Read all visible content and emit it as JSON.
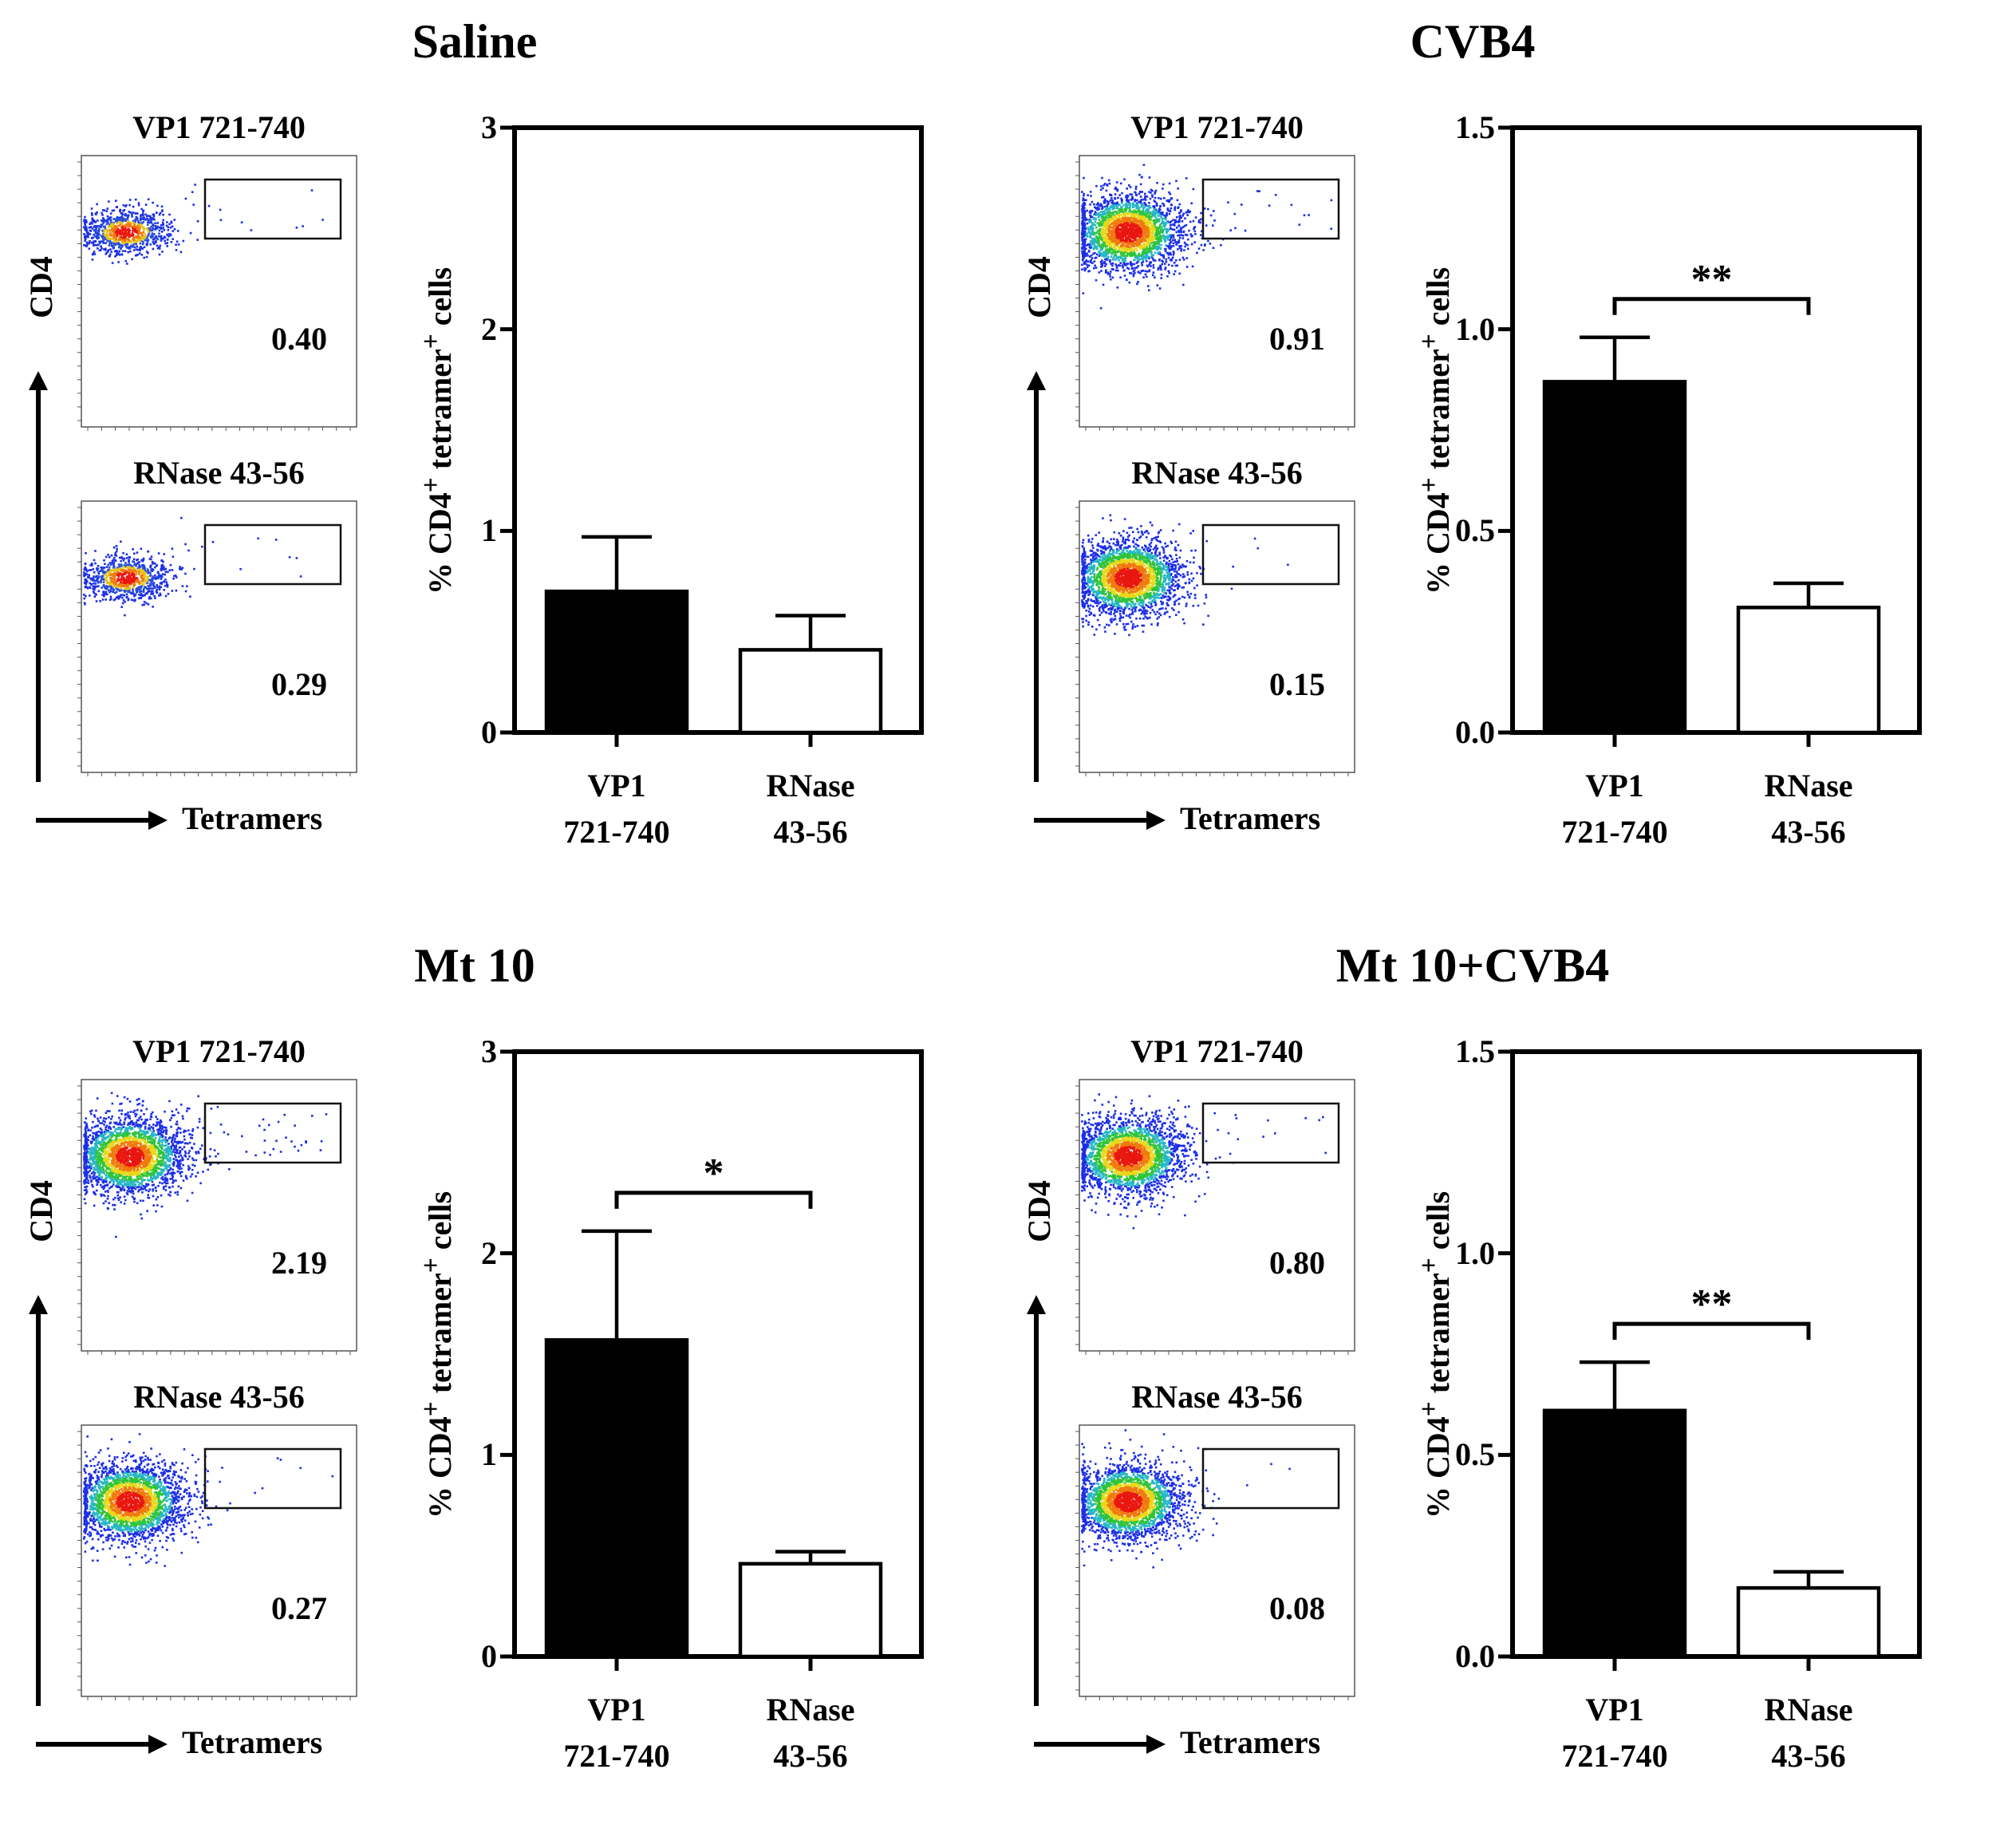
{
  "chart_data": [
    {
      "type": "bar",
      "title": "Saline",
      "ylabel_html": "% CD4<sup>+</sup> tetramer<sup>+</sup> cells",
      "categories": [
        [
          "VP1",
          "721-740"
        ],
        [
          "RNase",
          "43-56"
        ]
      ],
      "values": [
        0.7,
        0.41
      ],
      "errors": [
        0.27,
        0.17
      ],
      "bar_colors": [
        "#000000",
        "#ffffff"
      ],
      "ylim": [
        0,
        3
      ],
      "yticks": [
        "0",
        "1",
        "2",
        "3"
      ],
      "ytick_values": [
        0,
        1,
        2,
        3
      ],
      "significance": "",
      "flow": [
        {
          "label": "VP1 721-740",
          "percent": "0.40",
          "density": "low"
        },
        {
          "label": "RNase 43-56",
          "percent": "0.29",
          "density": "low"
        }
      ],
      "flow_axes": {
        "y": "CD4",
        "x": "Tetramers"
      }
    },
    {
      "type": "bar",
      "title": "CVB4",
      "ylabel_html": "% CD4<sup>+</sup> tetramer<sup>+</sup> cells",
      "categories": [
        [
          "VP1",
          "721-740"
        ],
        [
          "RNase",
          "43-56"
        ]
      ],
      "values": [
        0.87,
        0.31
      ],
      "errors": [
        0.11,
        0.06
      ],
      "bar_colors": [
        "#000000",
        "#ffffff"
      ],
      "ylim": [
        0,
        1.5
      ],
      "yticks": [
        "0.0",
        "0.5",
        "1.0",
        "1.5"
      ],
      "ytick_values": [
        0,
        0.5,
        1.0,
        1.5
      ],
      "significance": "**",
      "flow": [
        {
          "label": "VP1 721-740",
          "percent": "0.91",
          "density": "high"
        },
        {
          "label": "RNase 43-56",
          "percent": "0.15",
          "density": "high"
        }
      ],
      "flow_axes": {
        "y": "CD4",
        "x": "Tetramers"
      }
    },
    {
      "type": "bar",
      "title": "Mt 10",
      "ylabel_html": "% CD4<sup>+</sup> tetramer<sup>+</sup> cells",
      "categories": [
        [
          "VP1",
          "721-740"
        ],
        [
          "RNase",
          "43-56"
        ]
      ],
      "values": [
        1.57,
        0.46
      ],
      "errors": [
        0.54,
        0.06
      ],
      "bar_colors": [
        "#000000",
        "#ffffff"
      ],
      "ylim": [
        0,
        3
      ],
      "yticks": [
        "0",
        "1",
        "2",
        "3"
      ],
      "ytick_values": [
        0,
        1,
        2,
        3
      ],
      "significance": "*",
      "flow": [
        {
          "label": "VP1 721-740",
          "percent": "2.19",
          "density": "high"
        },
        {
          "label": "RNase 43-56",
          "percent": "0.27",
          "density": "high"
        }
      ],
      "flow_axes": {
        "y": "CD4",
        "x": "Tetramers"
      }
    },
    {
      "type": "bar",
      "title": "Mt 10+CVB4",
      "ylabel_html": "% CD4<sup>+</sup> tetramer<sup>+</sup> cells",
      "categories": [
        [
          "VP1",
          "721-740"
        ],
        [
          "RNase",
          "43-56"
        ]
      ],
      "values": [
        0.61,
        0.17
      ],
      "errors": [
        0.12,
        0.04
      ],
      "bar_colors": [
        "#000000",
        "#ffffff"
      ],
      "ylim": [
        0,
        1.5
      ],
      "yticks": [
        "0.0",
        "0.5",
        "1.0",
        "1.5"
      ],
      "ytick_values": [
        0,
        0.5,
        1.0,
        1.5
      ],
      "significance": "**",
      "flow": [
        {
          "label": "VP1 721-740",
          "percent": "0.80",
          "density": "high"
        },
        {
          "label": "RNase 43-56",
          "percent": "0.08",
          "density": "high"
        }
      ],
      "flow_axes": {
        "y": "CD4",
        "x": "Tetramers"
      }
    }
  ]
}
